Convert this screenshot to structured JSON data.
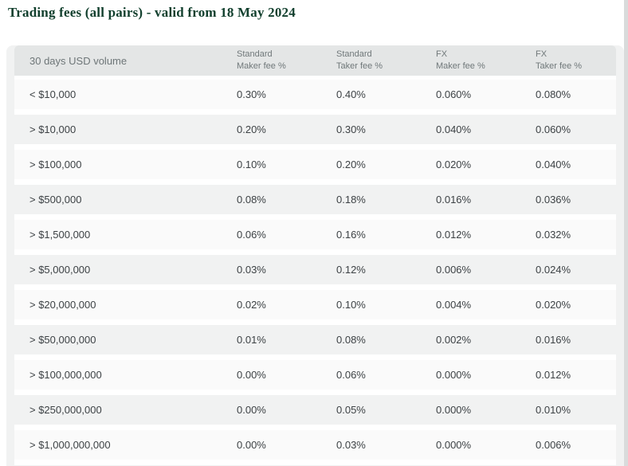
{
  "page": {
    "title": "Trading fees (all pairs) - valid from 18 May 2024"
  },
  "colors": {
    "title_green": "#12402e",
    "panel_bg": "#f1f2f2",
    "header_bg": "#e4e6e6",
    "row_odd_bg": "#fafafa",
    "row_even_bg": "#f1f2f2",
    "cell_text": "#3d4245",
    "header_text": "#70787a"
  },
  "table": {
    "columns": [
      {
        "label": "30 days USD volume"
      },
      {
        "line1": "Standard",
        "line2": "Maker fee %"
      },
      {
        "line1": "Standard",
        "line2": "Taker fee %"
      },
      {
        "line1": "FX",
        "line2": "Maker fee %"
      },
      {
        "line1": "FX",
        "line2": "Taker fee %"
      }
    ],
    "rows": [
      [
        "< $10,000",
        "0.30%",
        "0.40%",
        "0.060%",
        "0.080%"
      ],
      [
        "> $10,000",
        "0.20%",
        "0.30%",
        "0.040%",
        "0.060%"
      ],
      [
        "> $100,000",
        "0.10%",
        "0.20%",
        "0.020%",
        "0.040%"
      ],
      [
        "> $500,000",
        "0.08%",
        "0.18%",
        "0.016%",
        "0.036%"
      ],
      [
        "> $1,500,000",
        "0.06%",
        "0.16%",
        "0.012%",
        "0.032%"
      ],
      [
        "> $5,000,000",
        "0.03%",
        "0.12%",
        "0.006%",
        "0.024%"
      ],
      [
        "> $20,000,000",
        "0.02%",
        "0.10%",
        "0.004%",
        "0.020%"
      ],
      [
        "> $50,000,000",
        "0.01%",
        "0.08%",
        "0.002%",
        "0.016%"
      ],
      [
        "> $100,000,000",
        "0.00%",
        "0.06%",
        "0.000%",
        "0.012%"
      ],
      [
        "> $250,000,000",
        "0.00%",
        "0.05%",
        "0.000%",
        "0.010%"
      ],
      [
        "> $1,000,000,000",
        "0.00%",
        "0.03%",
        "0.000%",
        "0.006%"
      ]
    ]
  }
}
